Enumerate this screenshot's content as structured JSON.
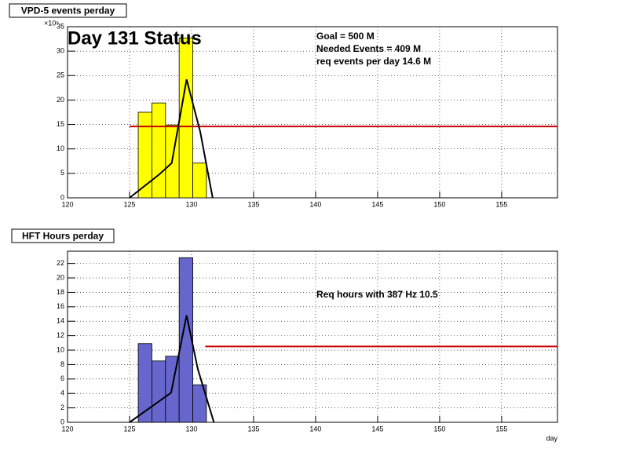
{
  "chart_data": [
    {
      "type": "histogram",
      "title": "VPD-5 events perday",
      "y_multiplier": "×10⁶",
      "bins": [
        125.7,
        126.8,
        127.9,
        129.0,
        130.1,
        131.2
      ],
      "values": [
        17.5,
        19.4,
        14.9,
        32.7,
        7.1
      ],
      "color": "#ffff00",
      "line_x": [
        125,
        127.4,
        128.4,
        129.6,
        130.7,
        131.7
      ],
      "line_y": [
        0,
        4.8,
        7.1,
        24.2,
        13.5,
        0
      ],
      "line_color": "#000000",
      "ref_y": 14.6,
      "ref_xstart": 125,
      "ref_color": "#cc0000",
      "xlim": [
        120,
        159.5
      ],
      "xticks": [
        120,
        125,
        130,
        135,
        140,
        145,
        150,
        155
      ],
      "ylim": [
        0,
        35
      ],
      "yticks": [
        0,
        5,
        10,
        15,
        20,
        25,
        30,
        35
      ],
      "grid": true,
      "annotations": [
        "Day 131 Status",
        "Goal =   500 M",
        "Needed Events =   409 M",
        "req events per day 14.6 M"
      ]
    },
    {
      "type": "histogram",
      "title": "HFT Hours perday",
      "xlabel": "day",
      "bins": [
        125.7,
        126.8,
        127.9,
        129.0,
        130.1,
        131.2
      ],
      "values": [
        10.9,
        8.5,
        9.15,
        22.8,
        5.2
      ],
      "color": "#6666cc",
      "line_x": [
        125,
        128.35,
        129.6,
        130.5,
        131.8
      ],
      "line_y": [
        0,
        4.1,
        14.8,
        7.4,
        0
      ],
      "line_color": "#000000",
      "ref_y": 10.5,
      "ref_xstart": 131.1,
      "ref_color": "#cc0000",
      "xlim": [
        120,
        159.5
      ],
      "xticks": [
        120,
        125,
        130,
        135,
        140,
        145,
        150,
        155
      ],
      "ylim": [
        0,
        23.7
      ],
      "yticks": [
        0,
        2,
        4,
        6,
        8,
        10,
        12,
        14,
        16,
        18,
        20,
        22
      ],
      "grid": true,
      "annotations": [
        "Req hours with  387 Hz 10.5"
      ]
    }
  ]
}
